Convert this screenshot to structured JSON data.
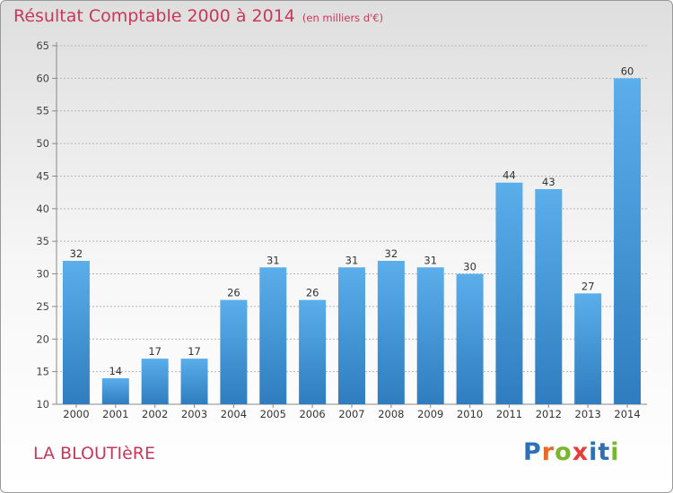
{
  "title": {
    "main": "Résultat Comptable 2000 à 2014",
    "sub": "(en milliers d'€)"
  },
  "commune": "LA BLOUTIèRE",
  "logo": {
    "text": "Proxiti"
  },
  "colors": {
    "title": "#c8385a",
    "bar_top": "#5aaeea",
    "bar_bottom": "#2f7dbf",
    "grid": "#b5b5b5",
    "logo_letters": [
      "#2f6fb5",
      "#e8692a",
      "#7ab62d",
      "#e83b3b",
      "#2f6fb5",
      "#2f6fb5",
      "#7ab62d"
    ]
  },
  "chart_data": {
    "type": "bar",
    "title": "Résultat Comptable 2000 à 2014",
    "subtitle": "(en milliers d'€)",
    "xlabel": "",
    "ylabel": "",
    "categories": [
      "2000",
      "2001",
      "2002",
      "2003",
      "2004",
      "2005",
      "2006",
      "2007",
      "2008",
      "2009",
      "2010",
      "2011",
      "2012",
      "2013",
      "2014"
    ],
    "values": [
      32,
      14,
      17,
      17,
      26,
      31,
      26,
      31,
      32,
      31,
      30,
      44,
      43,
      27,
      60
    ],
    "ylim": [
      10,
      65
    ],
    "yticks": [
      10,
      15,
      20,
      25,
      30,
      35,
      40,
      45,
      50,
      55,
      60,
      65
    ],
    "grid": true,
    "data_labels": true
  }
}
